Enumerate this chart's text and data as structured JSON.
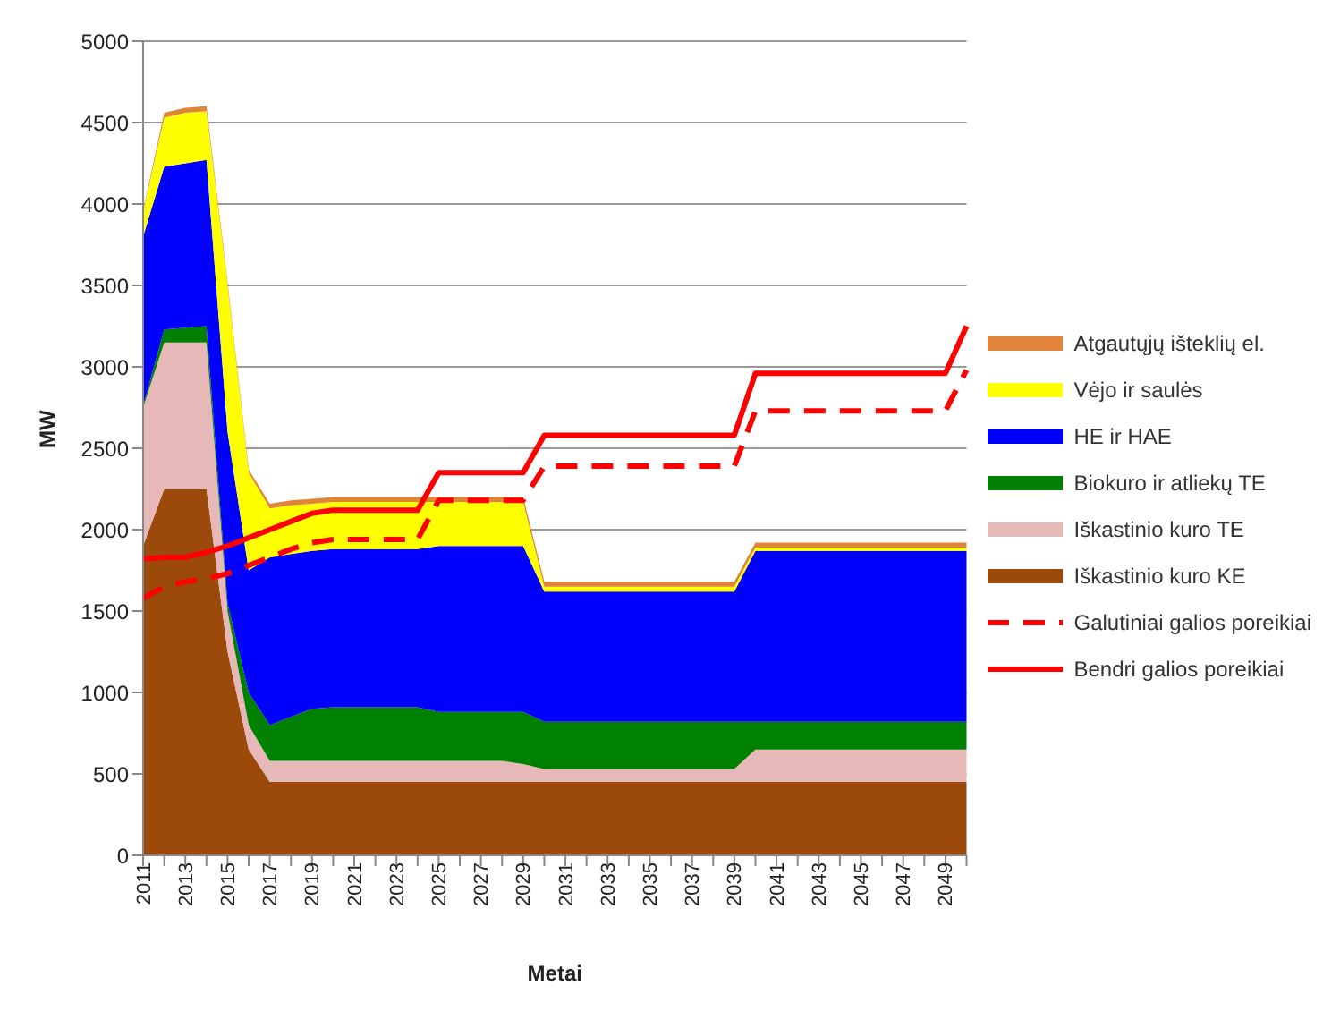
{
  "chart_data": {
    "type": "area",
    "stacked": true,
    "xlabel": "Metai",
    "ylabel": "MW",
    "categories": [
      "2011",
      null,
      "2013",
      null,
      "2015",
      null,
      "2017",
      null,
      "2019",
      null,
      "2021",
      null,
      "2023",
      null,
      "2025",
      null,
      "2027",
      null,
      "2029",
      null,
      "2031",
      null,
      "2033",
      null,
      "2035",
      null,
      "2037",
      null,
      "2039",
      null,
      "2041",
      null,
      "2043",
      null,
      "2045",
      null,
      "2047",
      null,
      "2049",
      null
    ],
    "ylim": [
      0,
      5000
    ],
    "yticks": [
      0,
      500,
      1000,
      1500,
      2000,
      2500,
      3000,
      3500,
      4000,
      4500,
      5000
    ],
    "grid": "y",
    "legend": "right",
    "series": [
      {
        "name": "Iškastinio kuro KE",
        "color": "#9c4a0c",
        "values": [
          1900,
          2250,
          2250,
          2250,
          1250,
          650,
          450,
          450,
          450,
          450,
          450,
          450,
          450,
          450,
          450,
          450,
          450,
          450,
          450,
          450,
          450,
          450,
          450,
          450,
          450,
          450,
          450,
          450,
          450,
          450,
          450,
          450,
          450,
          450,
          450,
          450,
          450,
          450,
          450,
          450
        ]
      },
      {
        "name": "Iškastinio kuro TE",
        "color": "#e6b8b7",
        "values": [
          850,
          900,
          900,
          900,
          250,
          150,
          130,
          130,
          130,
          130,
          130,
          130,
          130,
          130,
          130,
          130,
          130,
          130,
          110,
          80,
          80,
          80,
          80,
          80,
          80,
          80,
          80,
          80,
          80,
          200,
          200,
          200,
          200,
          200,
          200,
          200,
          200,
          200,
          200,
          200
        ]
      },
      {
        "name": "Biokuro ir atliekų TE",
        "color": "#008000",
        "values": [
          10,
          80,
          90,
          100,
          50,
          200,
          220,
          270,
          320,
          330,
          330,
          330,
          330,
          330,
          300,
          300,
          300,
          300,
          320,
          290,
          290,
          290,
          290,
          290,
          290,
          290,
          290,
          290,
          290,
          170,
          170,
          170,
          170,
          170,
          170,
          170,
          170,
          170,
          170,
          170
        ]
      },
      {
        "name": "HE ir HAE",
        "color": "#0000ff",
        "values": [
          1040,
          1000,
          1010,
          1020,
          1050,
          750,
          1030,
          1000,
          970,
          970,
          970,
          970,
          970,
          970,
          1020,
          1020,
          1020,
          1020,
          1020,
          800,
          800,
          800,
          800,
          800,
          800,
          800,
          800,
          800,
          800,
          1050,
          1050,
          1050,
          1050,
          1050,
          1050,
          1050,
          1050,
          1050,
          1050,
          1050
        ]
      },
      {
        "name": "Vėjo ir saulės",
        "color": "#ffff00",
        "values": [
          150,
          300,
          310,
          300,
          900,
          600,
          300,
          300,
          290,
          290,
          290,
          290,
          290,
          290,
          270,
          270,
          270,
          270,
          270,
          30,
          30,
          30,
          30,
          30,
          30,
          30,
          30,
          30,
          30,
          20,
          20,
          20,
          20,
          20,
          20,
          20,
          20,
          20,
          20,
          20
        ]
      },
      {
        "name": "Atgautųjų išteklių el.",
        "color": "#e0843a",
        "values": [
          10,
          30,
          30,
          30,
          20,
          20,
          30,
          30,
          30,
          30,
          30,
          30,
          30,
          30,
          30,
          30,
          30,
          30,
          30,
          30,
          30,
          30,
          30,
          30,
          30,
          30,
          30,
          30,
          30,
          30,
          30,
          30,
          30,
          30,
          30,
          30,
          30,
          30,
          30,
          30
        ]
      },
      {
        "name": "Galutiniai galios poreikiai",
        "type": "line",
        "line_style": "dashed",
        "color": "#ff0000",
        "values": [
          1580,
          1650,
          1680,
          1700,
          1730,
          1780,
          1830,
          1880,
          1920,
          1940,
          1940,
          1940,
          1940,
          1940,
          2180,
          2180,
          2180,
          2180,
          2180,
          2390,
          2390,
          2390,
          2390,
          2390,
          2390,
          2390,
          2390,
          2390,
          2390,
          2730,
          2730,
          2730,
          2730,
          2730,
          2730,
          2730,
          2730,
          2730,
          2730,
          2980
        ]
      },
      {
        "name": "Bendri galios poreikiai",
        "type": "line",
        "line_style": "solid",
        "color": "#ff0000",
        "values": [
          1820,
          1830,
          1830,
          1860,
          1900,
          1950,
          2000,
          2050,
          2100,
          2120,
          2120,
          2120,
          2120,
          2120,
          2350,
          2350,
          2350,
          2350,
          2350,
          2580,
          2580,
          2580,
          2580,
          2580,
          2580,
          2580,
          2580,
          2580,
          2580,
          2960,
          2960,
          2960,
          2960,
          2960,
          2960,
          2960,
          2960,
          2960,
          2960,
          3250
        ]
      }
    ]
  }
}
